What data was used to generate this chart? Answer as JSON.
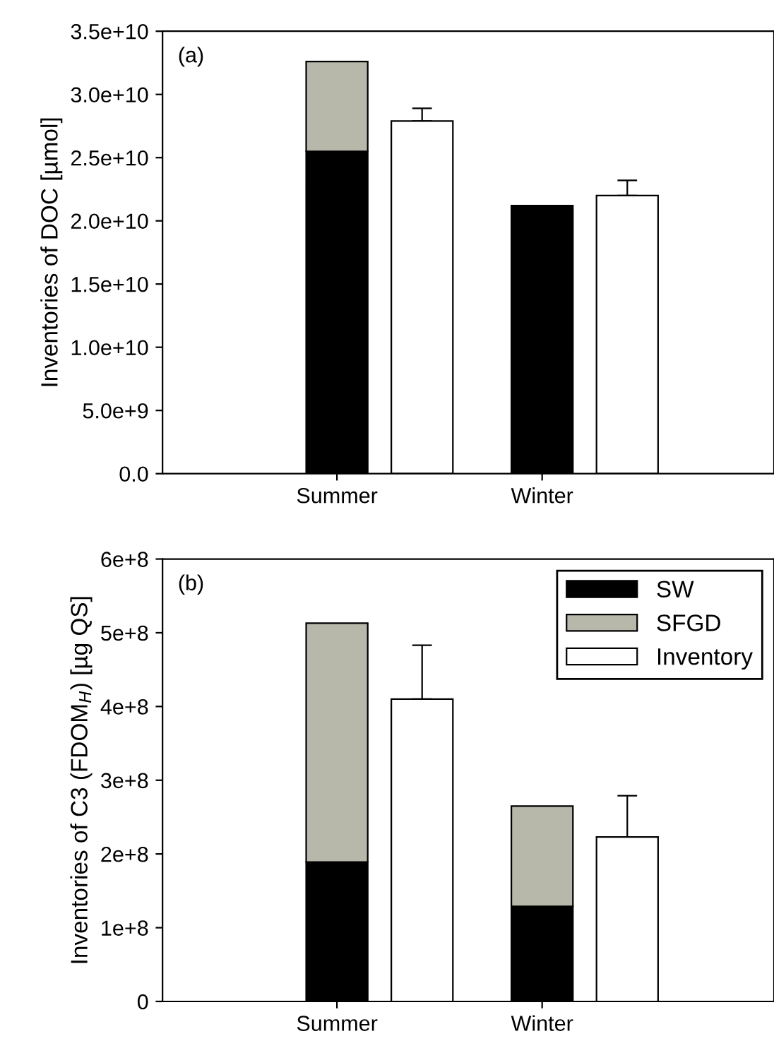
{
  "chart_data": [
    {
      "type": "bar",
      "ylabel": "Inventories of DOC [µmol]",
      "annotations": [
        "(a)"
      ],
      "categories": [
        "Summer",
        null,
        "Winter",
        null
      ],
      "series": [
        {
          "color": "#000000",
          "values": [
            25500000000.0,
            null,
            21200000000.0,
            null
          ]
        },
        {
          "color": "#b7b7aa",
          "values": [
            7100000000.0,
            null,
            null,
            null
          ]
        },
        {
          "color": "#ffffff",
          "values": [
            null,
            27900000000.0,
            null,
            22000000000.0
          ],
          "errors": [
            null,
            [
              27900000000.0,
              28900000000.0
            ],
            null,
            [
              22000000000.0,
              23200000000.0
            ]
          ]
        }
      ],
      "stacked": true,
      "ylim": [
        0,
        35000000000.0
      ],
      "yticks": [
        {
          "value": 0,
          "label": "0.0"
        },
        {
          "value": 5000000000.0,
          "label": "5.0e+9"
        },
        {
          "value": 10000000000.0,
          "label": "1.0e+10"
        },
        {
          "value": 15000000000.0,
          "label": "1.5e+10"
        },
        {
          "value": 20000000000.0,
          "label": "2.0e+10"
        },
        {
          "value": 25000000000.0,
          "label": "2.5e+10"
        },
        {
          "value": 30000000000.0,
          "label": "3.0e+10"
        },
        {
          "value": 35000000000.0,
          "label": "3.5e+10"
        }
      ],
      "grid": false,
      "legend": false
    },
    {
      "type": "bar",
      "ylabel": "Inventories of C3 (FDOM$_{H}$) [µg QS]",
      "annotations": [
        "(b)"
      ],
      "categories": [
        "Summer",
        null,
        "Winter",
        null
      ],
      "series": [
        {
          "name": "SW",
          "color": "#000000",
          "values": [
            189000000.0,
            null,
            129000000.0,
            null
          ]
        },
        {
          "name": "SFGD",
          "color": "#b7b7aa",
          "values": [
            324000000.0,
            null,
            136000000.0,
            null
          ]
        },
        {
          "name": "Inventory",
          "color": "#ffffff",
          "values": [
            null,
            410000000.0,
            null,
            223000000.0
          ],
          "errors": [
            null,
            [
              410000000.0,
              483000000.0
            ],
            null,
            [
              223000000.0,
              279000000.0
            ]
          ]
        }
      ],
      "stacked": true,
      "ylim": [
        0,
        600000000.0
      ],
      "yticks": [
        {
          "value": 0,
          "label": "0"
        },
        {
          "value": 100000000.0,
          "label": "1e+8"
        },
        {
          "value": 200000000.0,
          "label": "2e+8"
        },
        {
          "value": 300000000.0,
          "label": "3e+8"
        },
        {
          "value": 400000000.0,
          "label": "4e+8"
        },
        {
          "value": 500000000.0,
          "label": "5e+8"
        },
        {
          "value": 600000000.0,
          "label": "6e+8"
        }
      ],
      "grid": false,
      "legend": "top right"
    }
  ]
}
